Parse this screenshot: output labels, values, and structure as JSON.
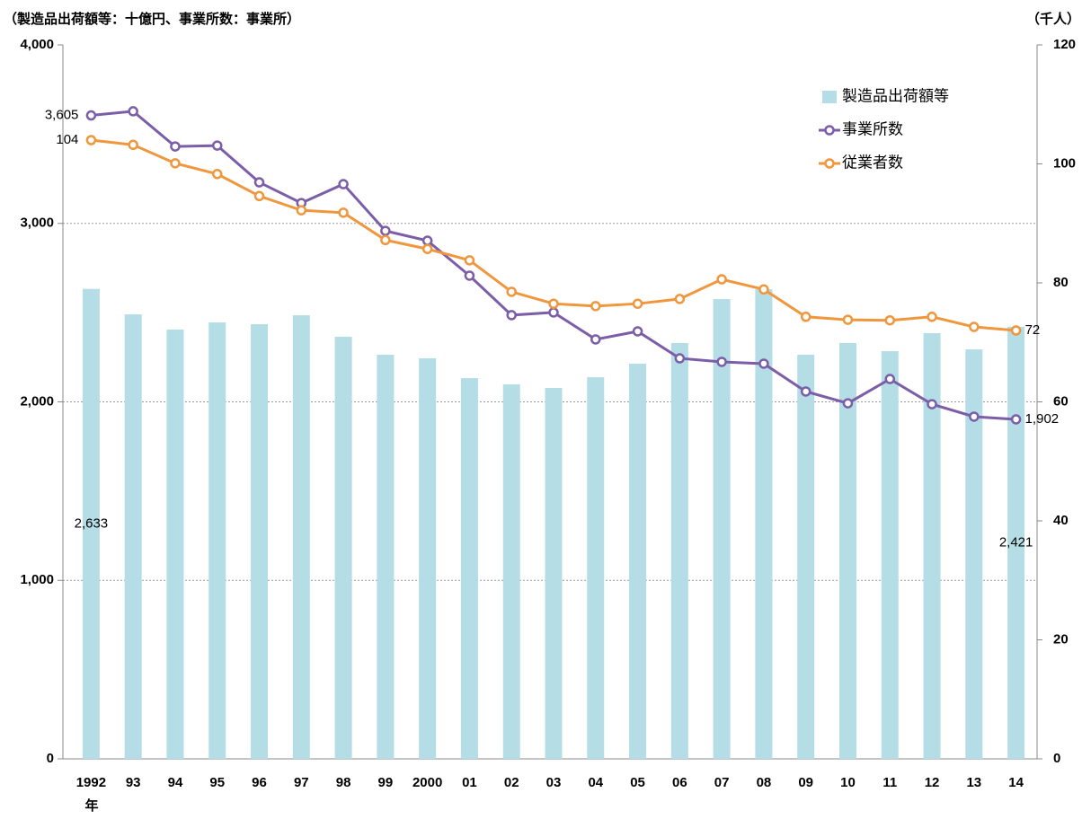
{
  "chart_data": {
    "type": "bar_line",
    "y_label": "（製造品出荷額等：十億円、事業所数：事業所）",
    "y2_label": "（千人）",
    "x_label": "年",
    "categories": [
      "1992",
      "93",
      "94",
      "95",
      "96",
      "97",
      "98",
      "99",
      "2000",
      "01",
      "02",
      "03",
      "04",
      "05",
      "06",
      "07",
      "08",
      "09",
      "10",
      "11",
      "12",
      "13",
      "14"
    ],
    "series": [
      {
        "name": "製造品出荷額等",
        "type": "bar",
        "color": "#b4dde6",
        "values": [
          2633,
          2490,
          2405,
          2445,
          2435,
          2485,
          2365,
          2264,
          2244,
          2133,
          2098,
          2078,
          2138,
          2214,
          2330,
          2576,
          2631,
          2264,
          2330,
          2284,
          2385,
          2294,
          2421
        ],
        "value_labels": [
          "2,633",
          null,
          null,
          null,
          null,
          null,
          null,
          null,
          null,
          null,
          null,
          null,
          null,
          null,
          null,
          null,
          null,
          null,
          null,
          null,
          null,
          null,
          "2,421"
        ]
      },
      {
        "name": "事業所数",
        "type": "line",
        "color": "#7b5ea7",
        "values": [
          3605,
          3628,
          3431,
          3436,
          3230,
          3114,
          3220,
          2958,
          2903,
          2707,
          2486,
          2501,
          2350,
          2395,
          2244,
          2224,
          2214,
          2058,
          1992,
          2128,
          1987,
          1917,
          1902
        ],
        "value_labels": [
          "3,605",
          null,
          null,
          null,
          null,
          null,
          null,
          null,
          null,
          null,
          null,
          null,
          null,
          null,
          null,
          null,
          null,
          null,
          null,
          null,
          null,
          null,
          "1,902"
        ]
      },
      {
        "name": "従業者数",
        "type": "line",
        "color": "#f0963c",
        "axis": "y2",
        "values": [
          104,
          103.2,
          100.1,
          98.3,
          94.6,
          92.2,
          91.8,
          87.2,
          85.7,
          83.8,
          78.5,
          76.5,
          76.1,
          76.5,
          77.3,
          80.6,
          78.9,
          74.3,
          73.8,
          73.7,
          74.3,
          72.6,
          72
        ],
        "value_labels": [
          "104",
          null,
          null,
          null,
          null,
          null,
          null,
          null,
          null,
          null,
          null,
          null,
          null,
          null,
          null,
          null,
          null,
          null,
          null,
          null,
          null,
          null,
          "72"
        ]
      }
    ],
    "ylim": [
      0,
      4000
    ],
    "yticks": [
      0,
      {
        "value": 1000,
        "label": "1,000"
      },
      {
        "value": 2000,
        "label": "2,000"
      },
      {
        "value": 3000,
        "label": "3,000"
      },
      {
        "value": 4000,
        "label": "4,000"
      }
    ],
    "y2lim": [
      0,
      120
    ],
    "y2ticks": [
      0,
      20,
      40,
      60,
      80,
      100,
      120
    ],
    "grid": true,
    "legend": "upper right"
  }
}
